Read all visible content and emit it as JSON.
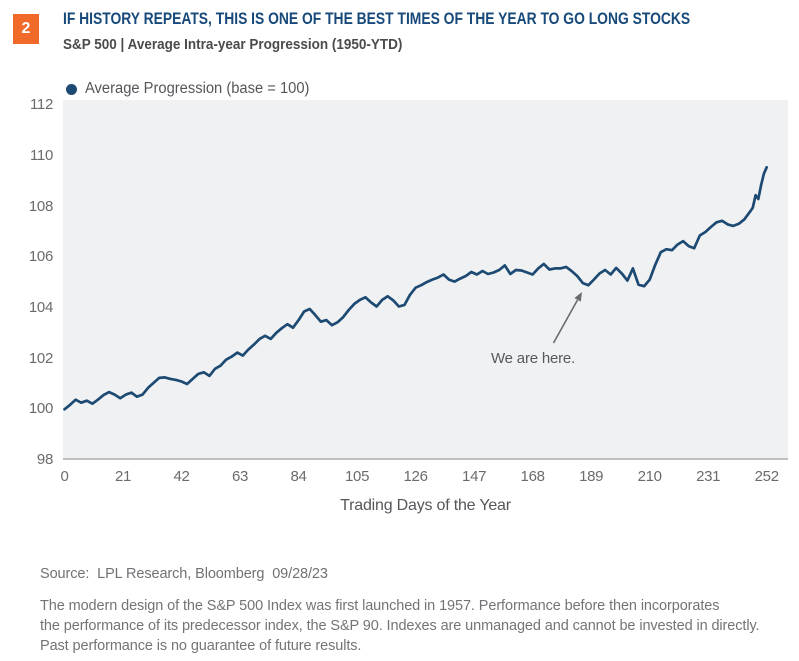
{
  "badge": "2",
  "header": {
    "title": "IF HISTORY REPEATS, THIS IS ONE OF THE BEST TIMES OF THE YEAR TO GO LONG STOCKS",
    "subtitle": "S&P 500 | Average Intra-year Progression (1950-YTD)"
  },
  "legend": {
    "label": "Average Progression (base = 100)"
  },
  "annotation": {
    "text": "We are here."
  },
  "footer": {
    "source": "Source:  LPL Research, Bloomberg  09/28/23",
    "disclaimer_lines": [
      "The modern design of the S&P 500 Index was first launched in 1957. Performance before then incorporates",
      "the performance of its predecessor index, the S&P 90. Indexes are unmanaged and cannot be invested in directly.",
      "Past performance is no guarantee of future results."
    ]
  },
  "colors": {
    "badge_orange": "#F26A2A",
    "title_navy": "#17497B",
    "line_navy": "#1D4A73",
    "plot_background": "#F0F1F2",
    "axis_gray": "#BCBEC0",
    "text_gray": "#6A6B6E"
  },
  "chart_data": {
    "type": "line",
    "title": "IF HISTORY REPEATS, THIS IS ONE OF THE BEST TIMES OF THE YEAR TO GO LONG STOCKS",
    "subtitle": "S&P 500 | Average Intra-year Progression (1950-YTD)",
    "xlabel": "Trading Days of the Year",
    "ylabel": "",
    "xlim": [
      0,
      252
    ],
    "ylim": [
      98,
      112
    ],
    "x_ticks": [
      0,
      21,
      42,
      63,
      84,
      105,
      126,
      147,
      168,
      189,
      210,
      231,
      252
    ],
    "y_ticks": [
      98,
      100,
      102,
      104,
      106,
      108,
      110,
      112
    ],
    "grid": false,
    "legend_position": "top-left",
    "annotations": [
      {
        "text": "We are here.",
        "x": 187,
        "y": 104.9
      }
    ],
    "series": [
      {
        "name": "Average Progression (base = 100)",
        "points": [
          [
            0,
            100.0
          ],
          [
            2,
            100.18
          ],
          [
            4,
            100.38
          ],
          [
            6,
            100.26
          ],
          [
            8,
            100.34
          ],
          [
            10,
            100.22
          ],
          [
            12,
            100.38
          ],
          [
            14,
            100.56
          ],
          [
            16,
            100.68
          ],
          [
            18,
            100.58
          ],
          [
            20,
            100.44
          ],
          [
            22,
            100.58
          ],
          [
            24,
            100.66
          ],
          [
            26,
            100.5
          ],
          [
            28,
            100.58
          ],
          [
            30,
            100.85
          ],
          [
            32,
            101.05
          ],
          [
            34,
            101.24
          ],
          [
            36,
            101.26
          ],
          [
            38,
            101.2
          ],
          [
            40,
            101.16
          ],
          [
            42,
            101.1
          ],
          [
            44,
            101.0
          ],
          [
            46,
            101.2
          ],
          [
            48,
            101.4
          ],
          [
            50,
            101.46
          ],
          [
            52,
            101.32
          ],
          [
            54,
            101.6
          ],
          [
            56,
            101.72
          ],
          [
            58,
            101.96
          ],
          [
            60,
            102.08
          ],
          [
            62,
            102.24
          ],
          [
            64,
            102.12
          ],
          [
            66,
            102.36
          ],
          [
            68,
            102.56
          ],
          [
            70,
            102.78
          ],
          [
            72,
            102.9
          ],
          [
            74,
            102.78
          ],
          [
            76,
            103.02
          ],
          [
            78,
            103.2
          ],
          [
            80,
            103.36
          ],
          [
            82,
            103.22
          ],
          [
            84,
            103.52
          ],
          [
            86,
            103.86
          ],
          [
            88,
            103.96
          ],
          [
            90,
            103.72
          ],
          [
            92,
            103.46
          ],
          [
            94,
            103.52
          ],
          [
            96,
            103.32
          ],
          [
            98,
            103.44
          ],
          [
            100,
            103.64
          ],
          [
            102,
            103.92
          ],
          [
            104,
            104.16
          ],
          [
            106,
            104.32
          ],
          [
            108,
            104.42
          ],
          [
            110,
            104.22
          ],
          [
            112,
            104.06
          ],
          [
            114,
            104.32
          ],
          [
            116,
            104.46
          ],
          [
            118,
            104.3
          ],
          [
            120,
            104.06
          ],
          [
            122,
            104.12
          ],
          [
            124,
            104.52
          ],
          [
            126,
            104.8
          ],
          [
            128,
            104.9
          ],
          [
            130,
            105.02
          ],
          [
            132,
            105.12
          ],
          [
            134,
            105.2
          ],
          [
            136,
            105.32
          ],
          [
            138,
            105.12
          ],
          [
            140,
            105.04
          ],
          [
            142,
            105.16
          ],
          [
            144,
            105.26
          ],
          [
            146,
            105.42
          ],
          [
            148,
            105.32
          ],
          [
            150,
            105.46
          ],
          [
            152,
            105.34
          ],
          [
            154,
            105.4
          ],
          [
            156,
            105.5
          ],
          [
            158,
            105.68
          ],
          [
            160,
            105.34
          ],
          [
            162,
            105.5
          ],
          [
            164,
            105.48
          ],
          [
            166,
            105.4
          ],
          [
            168,
            105.32
          ],
          [
            170,
            105.56
          ],
          [
            172,
            105.74
          ],
          [
            174,
            105.52
          ],
          [
            176,
            105.56
          ],
          [
            178,
            105.56
          ],
          [
            180,
            105.62
          ],
          [
            182,
            105.46
          ],
          [
            184,
            105.26
          ],
          [
            186,
            104.98
          ],
          [
            188,
            104.9
          ],
          [
            190,
            105.12
          ],
          [
            192,
            105.36
          ],
          [
            194,
            105.5
          ],
          [
            196,
            105.32
          ],
          [
            198,
            105.58
          ],
          [
            200,
            105.36
          ],
          [
            202,
            105.08
          ],
          [
            204,
            105.56
          ],
          [
            206,
            104.92
          ],
          [
            208,
            104.86
          ],
          [
            210,
            105.12
          ],
          [
            212,
            105.7
          ],
          [
            214,
            106.2
          ],
          [
            216,
            106.32
          ],
          [
            218,
            106.28
          ],
          [
            220,
            106.5
          ],
          [
            222,
            106.64
          ],
          [
            224,
            106.44
          ],
          [
            226,
            106.36
          ],
          [
            228,
            106.86
          ],
          [
            230,
            107.0
          ],
          [
            232,
            107.2
          ],
          [
            234,
            107.38
          ],
          [
            236,
            107.44
          ],
          [
            238,
            107.3
          ],
          [
            240,
            107.24
          ],
          [
            242,
            107.32
          ],
          [
            244,
            107.5
          ],
          [
            246,
            107.8
          ],
          [
            247,
            107.96
          ],
          [
            248,
            108.45
          ],
          [
            249,
            108.3
          ],
          [
            250,
            108.85
          ],
          [
            251,
            109.3
          ],
          [
            252,
            109.55
          ]
        ]
      }
    ]
  }
}
